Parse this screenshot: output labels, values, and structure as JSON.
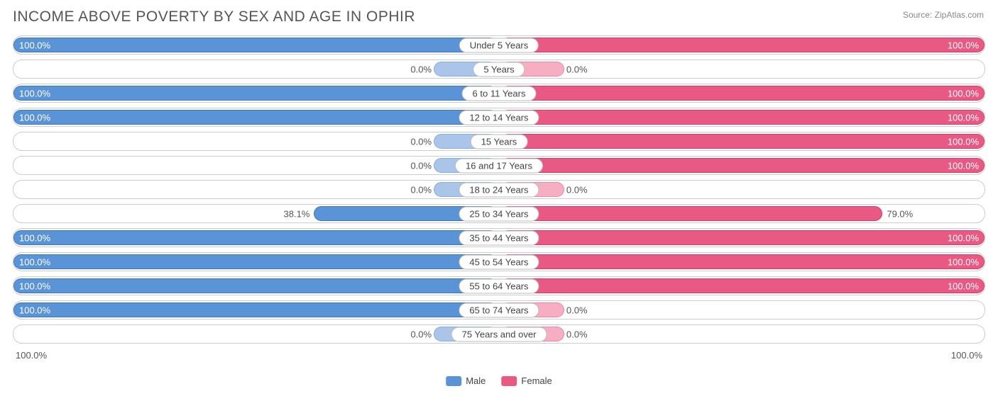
{
  "title": "INCOME ABOVE POVERTY BY SEX AND AGE IN OPHIR",
  "source": "Source: ZipAtlas.com",
  "colors": {
    "male_full": "#5a94d6",
    "male_stub": "#aac5e8",
    "female_full": "#e85a84",
    "female_stub": "#f5aec2",
    "border": "#cccccc",
    "text": "#555555"
  },
  "axis": {
    "left": "100.0%",
    "right": "100.0%"
  },
  "legend": [
    {
      "label": "Male",
      "color": "#5a94d6"
    },
    {
      "label": "Female",
      "color": "#e85a84"
    }
  ],
  "stub_pct": 13,
  "rows": [
    {
      "label": "Under 5 Years",
      "male": 100.0,
      "female": 100.0
    },
    {
      "label": "5 Years",
      "male": 0.0,
      "female": 0.0
    },
    {
      "label": "6 to 11 Years",
      "male": 100.0,
      "female": 100.0
    },
    {
      "label": "12 to 14 Years",
      "male": 100.0,
      "female": 100.0
    },
    {
      "label": "15 Years",
      "male": 0.0,
      "female": 100.0
    },
    {
      "label": "16 and 17 Years",
      "male": 0.0,
      "female": 100.0
    },
    {
      "label": "18 to 24 Years",
      "male": 0.0,
      "female": 0.0
    },
    {
      "label": "25 to 34 Years",
      "male": 38.1,
      "female": 79.0
    },
    {
      "label": "35 to 44 Years",
      "male": 100.0,
      "female": 100.0
    },
    {
      "label": "45 to 54 Years",
      "male": 100.0,
      "female": 100.0
    },
    {
      "label": "55 to 64 Years",
      "male": 100.0,
      "female": 100.0
    },
    {
      "label": "65 to 74 Years",
      "male": 100.0,
      "female": 0.0
    },
    {
      "label": "75 Years and over",
      "male": 0.0,
      "female": 0.0
    }
  ]
}
